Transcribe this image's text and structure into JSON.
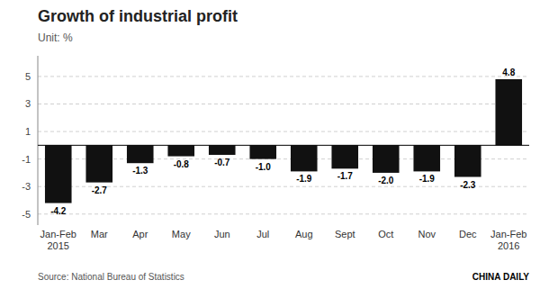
{
  "chart_data": {
    "type": "bar",
    "title": "Growth of industrial profit",
    "subtitle": "Unit: %",
    "categories": [
      "Jan-Feb\n2015",
      "Mar",
      "Apr",
      "May",
      "Jun",
      "Jul",
      "Aug",
      "Sept",
      "Oct",
      "Nov",
      "Dec",
      "Jan-Feb\n2016"
    ],
    "values": [
      -4.2,
      -2.7,
      -1.3,
      -0.8,
      -0.7,
      -1.0,
      -1.9,
      -1.7,
      -2.0,
      -1.9,
      -2.3,
      4.8
    ],
    "value_labels": [
      "-4.2",
      "-2.7",
      "-1.3",
      "-0.8",
      "-0.7",
      "-1.0",
      "-1.9",
      "-1.7",
      "-2.0",
      "-1.9",
      "-2.3",
      "4.8"
    ],
    "color": "#111111",
    "ylim": [
      -5.8,
      6.5
    ],
    "yticks": [
      -5,
      -3,
      -1,
      1,
      3,
      5
    ],
    "grid": true,
    "data_labels": true,
    "source": "Source: National Bureau of Statistics",
    "credit": "CHINA DAILY"
  }
}
